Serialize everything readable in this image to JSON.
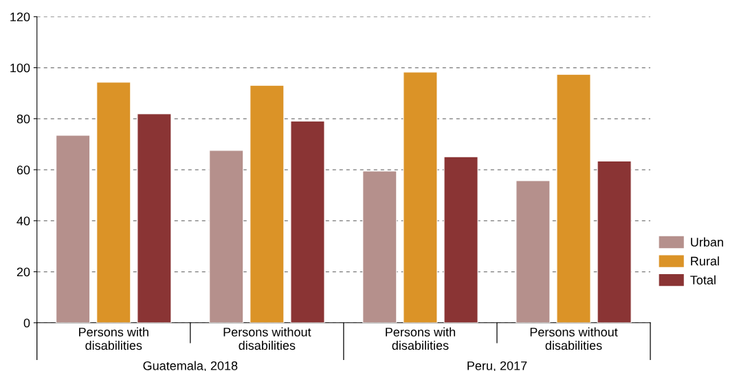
{
  "chart_data": {
    "type": "bar",
    "categories": [
      "Persons with\ndisabilities",
      "Persons without\ndisabilities",
      "Persons with\ndisabilities",
      "Persons without\ndisabilities"
    ],
    "series": [
      {
        "name": "Urban",
        "color": "#b5908c",
        "values": [
          73.5,
          67.6,
          59.5,
          55.7
        ]
      },
      {
        "name": "Rural",
        "color": "#db9327",
        "values": [
          94.3,
          93.1,
          98.3,
          97.4
        ]
      },
      {
        "name": "Total",
        "color": "#8a3434",
        "values": [
          81.9,
          79.1,
          65.1,
          63.4
        ]
      }
    ],
    "annotations": [
      "Guatemala, 2018",
      "Peru, 2017"
    ],
    "ylim": [
      0,
      120
    ],
    "yticks": [
      0,
      20,
      40,
      60,
      80,
      100,
      120
    ],
    "grid": "y",
    "legend": "right"
  }
}
